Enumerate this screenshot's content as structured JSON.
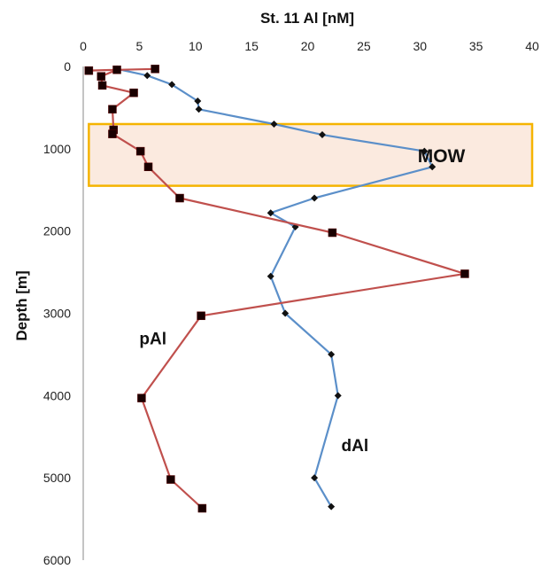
{
  "chart_data": {
    "type": "line",
    "title": "St. 11 Al [nM]",
    "xlabel": "St. 11 Al [nM]",
    "ylabel": "Depth [m]",
    "xlim": [
      0,
      40
    ],
    "ylim": [
      0,
      6000
    ],
    "y_inverted": true,
    "x_axis_position": "top",
    "x_ticks": [
      "0",
      "5",
      "10",
      "15",
      "20",
      "25",
      "30",
      "35",
      "40"
    ],
    "y_ticks": [
      "0",
      "1000",
      "2000",
      "3000",
      "4000",
      "5000",
      "6000"
    ],
    "grid": false,
    "legend": "none",
    "series": [
      {
        "name": "dAl",
        "color": "#5B8FC9",
        "marker": "diamond",
        "x": [
          3.0,
          5.7,
          7.9,
          10.2,
          10.3,
          17.0,
          21.3,
          30.4,
          31.1,
          20.6,
          16.7,
          18.9,
          16.7,
          18.0,
          22.1,
          22.7,
          20.6,
          22.1
        ],
        "y": [
          30,
          110,
          220,
          420,
          520,
          700,
          830,
          1030,
          1220,
          1600,
          1780,
          1950,
          2550,
          3000,
          3500,
          4000,
          5000,
          5350
        ]
      },
      {
        "name": "pAl",
        "color": "#C0504D",
        "marker": "square",
        "x": [
          6.4,
          0.5,
          3.0,
          1.6,
          1.7,
          4.5,
          2.6,
          2.7,
          2.6,
          5.1,
          5.8,
          8.6,
          22.2,
          34.0,
          10.5,
          5.2,
          7.8,
          10.6
        ],
        "y": [
          30,
          50,
          40,
          120,
          230,
          320,
          520,
          770,
          820,
          1030,
          1220,
          1600,
          2020,
          2520,
          3030,
          4030,
          5020,
          5370
        ]
      }
    ],
    "annotations": [
      {
        "text": "MOW",
        "type": "band",
        "y_range": [
          700,
          1450
        ],
        "x_range": [
          0.5,
          40
        ],
        "fill": "#FBEADF",
        "border": "#F5B400"
      },
      {
        "text": "pAl",
        "x": 5.0,
        "y": 3300
      },
      {
        "text": "dAl",
        "x": 23.0,
        "y": 4600
      }
    ]
  }
}
